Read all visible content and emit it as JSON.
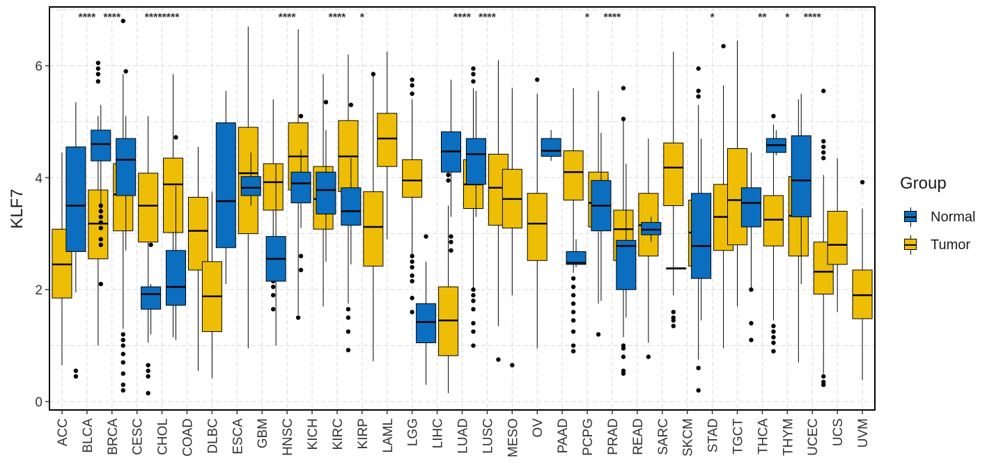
{
  "chart_data": {
    "type": "boxplot",
    "title": "",
    "xlabel": "",
    "ylabel": "KLF7",
    "ylim": [
      -0.15,
      7.05
    ],
    "yticks": [
      0,
      2,
      4,
      6
    ],
    "grid": true,
    "legend": {
      "title": "Group",
      "placement": "right",
      "entries": [
        {
          "name": "Normal",
          "color": "#0B6EBF"
        },
        {
          "name": "Tumor",
          "color": "#EDBE05"
        }
      ]
    },
    "categories": [
      "ACC",
      "BLCA",
      "BRCA",
      "CESC",
      "CHOL",
      "COAD",
      "DLBC",
      "ESCA",
      "GBM",
      "HNSC",
      "KICH",
      "KIRC",
      "KIRP",
      "LAML",
      "LGG",
      "LIHC",
      "LUAD",
      "LUSC",
      "MESO",
      "OV",
      "PAAD",
      "PCPG",
      "PRAD",
      "READ",
      "SARC",
      "SKCM",
      "STAD",
      "TGCT",
      "THCA",
      "THYM",
      "UCEC",
      "UCS",
      "UVM"
    ],
    "significance": [
      "",
      "****",
      "****",
      "",
      "********",
      "",
      "",
      "",
      "",
      "****",
      "",
      "****",
      "*",
      "",
      "",
      "",
      "****",
      "****",
      "",
      "",
      "",
      "*",
      "****",
      "",
      "",
      "",
      "*",
      "",
      "**",
      "*",
      "****",
      "",
      ""
    ],
    "series": [
      {
        "name": "Normal",
        "boxes": [
          null,
          {
            "min": 1.95,
            "q1": 2.68,
            "median": 3.5,
            "q3": 4.55,
            "max": 5.35,
            "outliers": [
              0.45,
              0.55
            ]
          },
          {
            "min": 3.4,
            "q1": 4.3,
            "median": 4.6,
            "q3": 4.85,
            "max": 5.3,
            "outliers": [
              3.5,
              3.4,
              3.3,
              3.2,
              3.1,
              2.9,
              2.8,
              2.1
            ]
          },
          {
            "min": 2.7,
            "q1": 3.68,
            "median": 4.32,
            "q3": 4.7,
            "max": 5.1,
            "outliers": [
              5.9
            ]
          },
          {
            "min": 1.2,
            "q1": 1.65,
            "median": 1.92,
            "q3": 2.05,
            "max": 2.1,
            "outliers": [
              2.8
            ]
          },
          {
            "min": 1.1,
            "q1": 1.72,
            "median": 2.05,
            "q3": 2.7,
            "max": 3.85,
            "outliers": [
              4.72
            ]
          },
          null,
          {
            "min": 2.1,
            "q1": 2.75,
            "median": 3.58,
            "q3": 4.98,
            "max": 5.55,
            "outliers": []
          },
          {
            "min": 3.5,
            "q1": 3.68,
            "median": 3.82,
            "q3": 4.02,
            "max": 4.45,
            "outliers": []
          },
          {
            "min": 1.0,
            "q1": 2.15,
            "median": 2.55,
            "q3": 2.95,
            "max": 4.25,
            "outliers": []
          },
          {
            "min": 3.1,
            "q1": 3.55,
            "median": 3.9,
            "q3": 4.1,
            "max": 4.5,
            "outliers": [
              5.1,
              2.6,
              2.35
            ]
          },
          {
            "min": 2.5,
            "q1": 3.35,
            "median": 3.78,
            "q3": 4.1,
            "max": 4.85,
            "outliers": [
              5.35
            ]
          },
          {
            "min": 2.45,
            "q1": 3.15,
            "median": 3.4,
            "q3": 3.82,
            "max": 4.35,
            "outliers": [
              5.3
            ]
          },
          null,
          null,
          {
            "min": 0.3,
            "q1": 1.05,
            "median": 1.42,
            "q3": 1.75,
            "max": 2.5,
            "outliers": [
              2.95
            ]
          },
          {
            "min": 3.3,
            "q1": 4.1,
            "median": 4.47,
            "q3": 4.82,
            "max": 5.75,
            "outliers": [
              2.95,
              2.85,
              2.7
            ]
          },
          {
            "min": 3.3,
            "q1": 3.88,
            "median": 4.42,
            "q3": 4.7,
            "max": 5.55,
            "outliers": []
          },
          null,
          null,
          {
            "min": 4.3,
            "q1": 4.38,
            "median": 4.48,
            "q3": 4.7,
            "max": 4.85,
            "outliers": []
          },
          {
            "min": 2.4,
            "q1": 2.45,
            "median": 2.48,
            "q3": 2.68,
            "max": 2.9,
            "outliers": []
          },
          {
            "min": 1.8,
            "q1": 3.05,
            "median": 3.5,
            "q3": 3.95,
            "max": 4.8,
            "outliers": []
          },
          {
            "min": 1.5,
            "q1": 2.0,
            "median": 2.78,
            "q3": 2.88,
            "max": 4.25,
            "outliers": []
          },
          {
            "min": 2.85,
            "q1": 2.98,
            "median": 3.07,
            "q3": 3.2,
            "max": 3.3,
            "outliers": []
          },
          {
            "min": 2.38,
            "q1": 2.38,
            "median": 2.38,
            "q3": 2.38,
            "max": 2.38,
            "outliers": []
          },
          {
            "min": 1.45,
            "q1": 2.2,
            "median": 2.78,
            "q3": 3.72,
            "max": 4.7,
            "outliers": []
          },
          null,
          {
            "min": 2.0,
            "q1": 3.12,
            "median": 3.55,
            "q3": 3.82,
            "max": 4.45,
            "outliers": [
              2.0,
              1.4,
              1.1
            ]
          },
          {
            "min": 4.4,
            "q1": 4.45,
            "median": 4.58,
            "q3": 4.7,
            "max": 4.85,
            "outliers": []
          },
          {
            "min": 2.1,
            "q1": 3.3,
            "median": 3.95,
            "q3": 4.75,
            "max": 5.5,
            "outliers": []
          },
          null,
          null
        ]
      },
      {
        "name": "Tumor",
        "boxes": [
          {
            "min": 0.65,
            "q1": 1.85,
            "median": 2.45,
            "q3": 3.08,
            "max": 4.45,
            "outliers": []
          },
          {
            "min": 1.0,
            "q1": 2.55,
            "median": 3.18,
            "q3": 3.78,
            "max": 5.1,
            "outliers": [
              6.05,
              5.95,
              5.85,
              5.72
            ]
          },
          {
            "min": 1.3,
            "q1": 3.05,
            "median": 3.7,
            "q3": 4.25,
            "max": 5.85,
            "outliers": [
              6.8,
              1.2,
              1.1,
              1.0,
              0.85,
              0.7,
              0.5,
              0.3,
              0.2
            ]
          },
          {
            "min": 1.05,
            "q1": 2.85,
            "median": 3.5,
            "q3": 4.08,
            "max": 5.1,
            "outliers": [
              0.65,
              0.55,
              0.45,
              0.15
            ]
          },
          {
            "min": 1.15,
            "q1": 3.02,
            "median": 3.88,
            "q3": 4.35,
            "max": 5.85,
            "outliers": []
          },
          {
            "min": 0.55,
            "q1": 2.35,
            "median": 3.05,
            "q3": 3.65,
            "max": 4.55,
            "outliers": []
          },
          {
            "min": 0.42,
            "q1": 1.25,
            "median": 1.88,
            "q3": 2.5,
            "max": 3.75,
            "outliers": []
          },
          {
            "min": 0.95,
            "q1": 3.0,
            "median": 4.08,
            "q3": 4.9,
            "max": 6.7,
            "outliers": []
          },
          {
            "min": 2.15,
            "q1": 3.42,
            "median": 3.92,
            "q3": 4.25,
            "max": 5.4,
            "outliers": [
              2.15,
              2.05,
              1.9,
              1.65
            ]
          },
          {
            "min": 1.55,
            "q1": 3.78,
            "median": 4.38,
            "q3": 4.98,
            "max": 6.65,
            "outliers": [
              1.5
            ]
          },
          {
            "min": 1.7,
            "q1": 3.08,
            "median": 3.62,
            "q3": 4.2,
            "max": 5.85,
            "outliers": []
          },
          {
            "min": 1.75,
            "q1": 3.75,
            "median": 4.38,
            "q3": 5.02,
            "max": 6.2,
            "outliers": [
              1.65,
              1.5,
              1.25,
              0.92
            ]
          },
          {
            "min": 0.72,
            "q1": 2.42,
            "median": 3.12,
            "q3": 3.75,
            "max": 5.85,
            "outliers": [
              5.85
            ]
          },
          {
            "min": 2.9,
            "q1": 4.2,
            "median": 4.7,
            "q3": 5.15,
            "max": 6.25,
            "outliers": []
          },
          {
            "min": 2.6,
            "q1": 3.65,
            "median": 3.95,
            "q3": 4.32,
            "max": 5.4,
            "outliers": [
              5.75,
              5.65,
              5.5,
              2.6,
              2.5,
              2.4,
              2.25,
              2.15,
              1.85,
              1.6
            ]
          },
          {
            "min": 0.15,
            "q1": 0.82,
            "median": 1.45,
            "q3": 2.05,
            "max": 3.5,
            "outliers": [
              4.65,
              4.3,
              4.2,
              4.05,
              3.95
            ]
          },
          {
            "min": 2.0,
            "q1": 3.45,
            "median": 3.88,
            "q3": 4.32,
            "max": 5.6,
            "outliers": [
              5.95,
              5.85,
              5.72,
              2.0,
              1.9,
              1.8,
              1.65,
              1.4,
              1.25,
              1.0
            ]
          },
          {
            "min": 1.35,
            "q1": 3.15,
            "median": 3.82,
            "q3": 4.42,
            "max": 6.1,
            "outliers": [
              0.75
            ]
          },
          {
            "min": 1.9,
            "q1": 3.1,
            "median": 3.62,
            "q3": 4.15,
            "max": 5.6,
            "outliers": [
              0.65
            ]
          },
          {
            "min": 0.95,
            "q1": 2.52,
            "median": 3.18,
            "q3": 3.72,
            "max": 5.5,
            "outliers": [
              5.75
            ]
          },
          {
            "min": 2.3,
            "q1": 3.6,
            "median": 4.1,
            "q3": 4.48,
            "max": 5.6,
            "outliers": [
              2.2,
              2.05,
              1.9,
              1.75,
              1.6,
              1.45,
              1.25,
              1.0,
              0.9
            ]
          },
          {
            "min": 1.75,
            "q1": 3.12,
            "median": 3.55,
            "q3": 4.1,
            "max": 5.55,
            "outliers": [
              1.2
            ]
          },
          {
            "min": 1.15,
            "q1": 2.52,
            "median": 3.08,
            "q3": 3.42,
            "max": 5.05,
            "outliers": [
              5.6,
              5.05,
              1.0,
              0.95,
              0.8,
              0.55,
              0.5
            ]
          },
          {
            "min": 1.05,
            "q1": 2.6,
            "median": 3.15,
            "q3": 3.72,
            "max": 4.7,
            "outliers": [
              0.8
            ]
          },
          {
            "min": 1.9,
            "q1": 3.5,
            "median": 4.18,
            "q3": 4.62,
            "max": 6.25,
            "outliers": [
              1.6,
              1.5,
              1.45,
              1.35
            ]
          },
          {
            "min": 0.75,
            "q1": 2.42,
            "median": 3.02,
            "q3": 3.6,
            "max": 5.3,
            "outliers": [
              5.95,
              5.55,
              5.45,
              0.6,
              0.2
            ]
          },
          {
            "min": 0.95,
            "q1": 2.7,
            "median": 3.3,
            "q3": 3.88,
            "max": 5.65,
            "outliers": [
              6.35
            ]
          },
          {
            "min": 1.7,
            "q1": 2.8,
            "median": 3.6,
            "q3": 4.52,
            "max": 6.45,
            "outliers": []
          },
          {
            "min": 1.45,
            "q1": 2.78,
            "median": 3.25,
            "q3": 3.68,
            "max": 4.95,
            "outliers": [
              5.1,
              1.35,
              1.25,
              1.15,
              1.05,
              0.9
            ]
          },
          {
            "min": 0.7,
            "q1": 2.6,
            "median": 3.32,
            "q3": 4.02,
            "max": 5.4,
            "outliers": []
          },
          {
            "min": 0.5,
            "q1": 1.92,
            "median": 2.32,
            "q3": 2.85,
            "max": 4.05,
            "outliers": [
              5.55,
              4.65,
              4.55,
              4.45,
              4.35,
              0.45,
              0.35,
              0.3
            ]
          },
          {
            "min": 1.6,
            "q1": 2.45,
            "median": 2.8,
            "q3": 3.4,
            "max": 4.35,
            "outliers": []
          },
          {
            "min": 0.38,
            "q1": 1.48,
            "median": 1.9,
            "q3": 2.35,
            "max": 3.45,
            "outliers": [
              3.92
            ]
          }
        ]
      }
    ]
  }
}
